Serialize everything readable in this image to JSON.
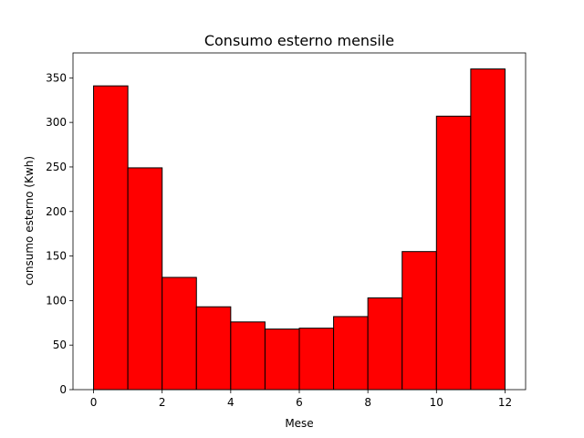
{
  "chart_data": {
    "type": "bar",
    "title": "Consumo esterno mensile",
    "xlabel": "Mese",
    "ylabel": "consumo esterno (Kwh)",
    "bins": [
      {
        "x0": 0,
        "x1": 1,
        "value": 341
      },
      {
        "x0": 1,
        "x1": 2,
        "value": 249
      },
      {
        "x0": 2,
        "x1": 3,
        "value": 126
      },
      {
        "x0": 3,
        "x1": 4,
        "value": 93
      },
      {
        "x0": 4,
        "x1": 5,
        "value": 76
      },
      {
        "x0": 5,
        "x1": 6,
        "value": 68
      },
      {
        "x0": 6,
        "x1": 7,
        "value": 69
      },
      {
        "x0": 7,
        "x1": 8,
        "value": 82
      },
      {
        "x0": 8,
        "x1": 9,
        "value": 103
      },
      {
        "x0": 9,
        "x1": 10,
        "value": 155
      },
      {
        "x0": 10,
        "x1": 11,
        "value": 307
      },
      {
        "x0": 11,
        "x1": 12,
        "value": 360
      }
    ],
    "xlim": [
      -0.6,
      12.6
    ],
    "ylim": [
      0,
      378
    ],
    "xticks": [
      0,
      2,
      4,
      6,
      8,
      10,
      12
    ],
    "yticks": [
      0,
      50,
      100,
      150,
      200,
      250,
      300,
      350
    ],
    "bar_color": "#ff0000",
    "edge_color": "#000000",
    "grid": false
  }
}
